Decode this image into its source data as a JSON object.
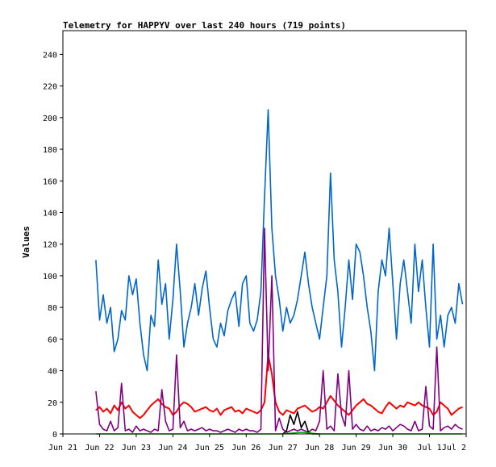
{
  "chart_data": {
    "type": "line",
    "title": "Telemetry for HAPPYV over last 240 hours (719 points)",
    "xlabel": "",
    "ylabel": "Values",
    "ylim": [
      0,
      255
    ],
    "yticks": [
      0,
      20,
      40,
      60,
      80,
      100,
      120,
      140,
      160,
      180,
      200,
      220,
      240
    ],
    "xticks": [
      "Jun 21",
      "Jun 22",
      "Jun 23",
      "Jun 24",
      "Jun 25",
      "Jun 26",
      "Jun 27",
      "Jun 28",
      "Jun 29",
      "Jun 30",
      "Jul 1",
      "Jul 2"
    ],
    "xlim_days": [
      0,
      11
    ],
    "grid": false,
    "legend": "none",
    "series": [
      {
        "color": "#0066cc",
        "x_days": [
          0.9,
          1.0,
          1.1,
          1.2,
          1.3,
          1.4,
          1.5,
          1.6,
          1.7,
          1.8,
          1.9,
          2.0,
          2.1,
          2.2,
          2.3,
          2.4,
          2.5,
          2.6,
          2.7,
          2.8,
          2.9,
          3.0,
          3.1,
          3.2,
          3.3,
          3.4,
          3.5,
          3.6,
          3.7,
          3.8,
          3.9,
          4.0,
          4.1,
          4.2,
          4.3,
          4.4,
          4.5,
          4.6,
          4.7,
          4.8,
          4.9,
          5.0,
          5.1,
          5.2,
          5.3,
          5.4,
          5.5,
          5.6,
          5.7,
          5.8,
          5.9,
          6.0,
          6.1,
          6.2,
          6.3,
          6.4,
          6.5,
          6.6,
          6.7,
          6.8,
          6.9,
          7.0,
          7.1,
          7.2,
          7.3,
          7.4,
          7.5,
          7.6,
          7.7,
          7.8,
          7.9,
          8.0,
          8.1,
          8.2,
          8.3,
          8.4,
          8.5,
          8.6,
          8.7,
          8.8,
          8.9,
          9.0,
          9.1,
          9.2,
          9.3,
          9.4,
          9.5,
          9.6,
          9.7,
          9.8,
          9.9,
          10.0,
          10.1,
          10.2,
          10.3,
          10.4,
          10.5,
          10.6,
          10.7,
          10.8,
          10.9
        ],
        "values": [
          110,
          72,
          88,
          70,
          80,
          52,
          60,
          78,
          72,
          100,
          88,
          98,
          70,
          50,
          40,
          75,
          68,
          110,
          82,
          95,
          60,
          85,
          120,
          90,
          55,
          70,
          80,
          95,
          75,
          92,
          103,
          80,
          60,
          55,
          70,
          62,
          78,
          85,
          90,
          68,
          95,
          100,
          70,
          65,
          72,
          90,
          150,
          205,
          130,
          100,
          85,
          65,
          80,
          70,
          75,
          85,
          100,
          115,
          95,
          80,
          70,
          60,
          80,
          100,
          165,
          110,
          90,
          55,
          80,
          110,
          85,
          120,
          115,
          100,
          80,
          65,
          40,
          90,
          110,
          100,
          130,
          95,
          60,
          95,
          110,
          90,
          70,
          120,
          90,
          110,
          80,
          55,
          120,
          60,
          75,
          55,
          75,
          80,
          70,
          95,
          82
        ]
      },
      {
        "color": "#ff0000",
        "x_days": [
          0.9,
          1.0,
          1.1,
          1.2,
          1.3,
          1.4,
          1.5,
          1.6,
          1.7,
          1.8,
          1.9,
          2.0,
          2.1,
          2.2,
          2.3,
          2.4,
          2.5,
          2.6,
          2.7,
          2.8,
          2.9,
          3.0,
          3.1,
          3.2,
          3.3,
          3.4,
          3.5,
          3.6,
          3.7,
          3.8,
          3.9,
          4.0,
          4.1,
          4.2,
          4.3,
          4.4,
          4.5,
          4.6,
          4.7,
          4.8,
          4.9,
          5.0,
          5.1,
          5.2,
          5.3,
          5.4,
          5.5,
          5.6,
          5.7,
          5.8,
          5.9,
          6.0,
          6.1,
          6.2,
          6.3,
          6.4,
          6.5,
          6.6,
          6.7,
          6.8,
          6.9,
          7.0,
          7.1,
          7.2,
          7.3,
          7.4,
          7.5,
          7.6,
          7.7,
          7.8,
          7.9,
          8.0,
          8.1,
          8.2,
          8.3,
          8.4,
          8.5,
          8.6,
          8.7,
          8.8,
          8.9,
          9.0,
          9.1,
          9.2,
          9.3,
          9.4,
          9.5,
          9.6,
          9.7,
          9.8,
          9.9,
          10.0,
          10.1,
          10.2,
          10.3,
          10.4,
          10.5,
          10.6,
          10.7,
          10.8,
          10.9
        ],
        "values": [
          15,
          17,
          14,
          16,
          13,
          18,
          15,
          20,
          16,
          18,
          14,
          12,
          10,
          12,
          15,
          18,
          20,
          22,
          19,
          17,
          16,
          12,
          14,
          18,
          20,
          19,
          17,
          14,
          15,
          16,
          17,
          15,
          14,
          16,
          12,
          15,
          16,
          17,
          14,
          15,
          13,
          16,
          15,
          14,
          13,
          15,
          20,
          50,
          38,
          20,
          14,
          12,
          15,
          14,
          13,
          16,
          17,
          18,
          16,
          14,
          15,
          17,
          16,
          20,
          24,
          21,
          18,
          16,
          14,
          12,
          15,
          18,
          20,
          22,
          19,
          18,
          16,
          14,
          13,
          17,
          20,
          18,
          16,
          18,
          17,
          20,
          19,
          18,
          20,
          18,
          17,
          16,
          12,
          14,
          20,
          18,
          16,
          12,
          14,
          16,
          17
        ]
      },
      {
        "color": "#800080",
        "x_days": [
          0.9,
          1.0,
          1.1,
          1.2,
          1.3,
          1.4,
          1.5,
          1.6,
          1.7,
          1.8,
          1.9,
          2.0,
          2.1,
          2.2,
          2.3,
          2.4,
          2.5,
          2.6,
          2.7,
          2.8,
          2.9,
          3.0,
          3.1,
          3.2,
          3.3,
          3.4,
          3.5,
          3.6,
          3.7,
          3.8,
          3.9,
          4.0,
          4.1,
          4.2,
          4.3,
          4.4,
          4.5,
          4.6,
          4.7,
          4.8,
          4.9,
          5.0,
          5.1,
          5.2,
          5.3,
          5.4,
          5.5,
          5.6,
          5.7,
          5.8,
          5.9,
          6.0,
          6.1,
          6.2,
          6.3,
          6.4,
          6.5,
          6.6,
          6.7,
          6.8,
          6.9,
          7.0,
          7.1,
          7.2,
          7.3,
          7.4,
          7.5,
          7.6,
          7.7,
          7.8,
          7.9,
          8.0,
          8.1,
          8.2,
          8.3,
          8.4,
          8.5,
          8.6,
          8.7,
          8.8,
          8.9,
          9.0,
          9.1,
          9.2,
          9.3,
          9.4,
          9.5,
          9.6,
          9.7,
          9.8,
          9.9,
          10.0,
          10.1,
          10.2,
          10.3,
          10.4,
          10.5,
          10.6,
          10.7,
          10.8,
          10.9
        ],
        "values": [
          27,
          6,
          3,
          2,
          8,
          2,
          4,
          32,
          2,
          3,
          1,
          5,
          2,
          3,
          2,
          1,
          3,
          2,
          28,
          8,
          2,
          3,
          50,
          4,
          8,
          2,
          3,
          2,
          3,
          4,
          2,
          3,
          2,
          2,
          1,
          2,
          3,
          2,
          1,
          3,
          2,
          3,
          2,
          2,
          1,
          3,
          130,
          40,
          100,
          2,
          10,
          3,
          1,
          2,
          3,
          2,
          3,
          2,
          1,
          3,
          2,
          8,
          40,
          3,
          5,
          2,
          38,
          12,
          5,
          40,
          3,
          6,
          3,
          2,
          5,
          2,
          3,
          2,
          4,
          3,
          5,
          2,
          4,
          6,
          5,
          3,
          2,
          8,
          2,
          3,
          30,
          5,
          3,
          55,
          2,
          4,
          5,
          3,
          6,
          4,
          3
        ]
      },
      {
        "color": "#000000",
        "x_days": [
          6.0,
          6.1,
          6.2,
          6.3,
          6.4,
          6.5,
          6.6,
          6.7,
          6.8,
          6.9,
          7.0
        ],
        "values": [
          0,
          2,
          12,
          6,
          14,
          4,
          8,
          1,
          0,
          0,
          0
        ]
      },
      {
        "color": "#00aa00",
        "x_days": [
          0.9,
          2.0,
          3.0,
          4.0,
          5.0,
          6.0,
          6.5,
          7.0,
          8.0,
          9.0,
          10.0,
          10.9
        ],
        "values": [
          0,
          0,
          0,
          0,
          0,
          0,
          1,
          0,
          0,
          0,
          0,
          0
        ]
      }
    ]
  }
}
